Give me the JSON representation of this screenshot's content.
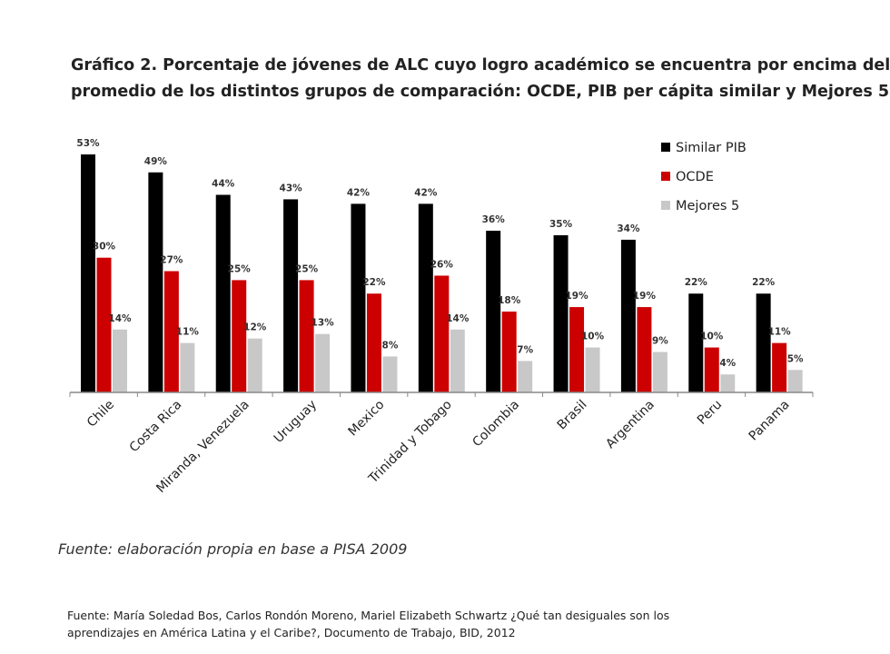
{
  "title_lines": [
    "Gráfico 2. Porcentaje de jóvenes de ALC cuyo logro académico se encuentra por encima del",
    "promedio de los distintos grupos de comparación: OCDE, PIB per cápita similar y Mejores 5"
  ],
  "source_note": "Fuente: elaboración propia en base a PISA 2009",
  "citation_lines": [
    "Fuente: María Soledad Bos, Carlos Rondón Moreno, Mariel Elizabeth Schwartz ¿Qué tan desiguales son los",
    "aprendizajes en América Latina y el Caribe?, Documento de Trabajo, BID, 2012"
  ],
  "chart_data": {
    "type": "bar",
    "title": "",
    "xlabel": "",
    "ylabel": "",
    "ylim": [
      0,
      55
    ],
    "grid": false,
    "legend_position": "top-right",
    "value_format": "{v}%",
    "categories": [
      "Chile",
      "Costa Rica",
      "Miranda, Venezuela",
      "Uruguay",
      "Mexico",
      "Trinidad y Tobago",
      "Colombia",
      "Brasil",
      "Argentina",
      "Peru",
      "Panama"
    ],
    "series": [
      {
        "name": "Similar PIB",
        "color": "#000000",
        "values": [
          53,
          49,
          44,
          43,
          42,
          42,
          36,
          35,
          34,
          22,
          22
        ]
      },
      {
        "name": "OCDE",
        "color": "#cc0000",
        "values": [
          30,
          27,
          25,
          25,
          22,
          26,
          18,
          19,
          19,
          10,
          11
        ]
      },
      {
        "name": "Mejores 5",
        "color": "#c8c8c8",
        "values": [
          14,
          11,
          12,
          13,
          8,
          14,
          7,
          10,
          9,
          4,
          5
        ]
      }
    ]
  }
}
